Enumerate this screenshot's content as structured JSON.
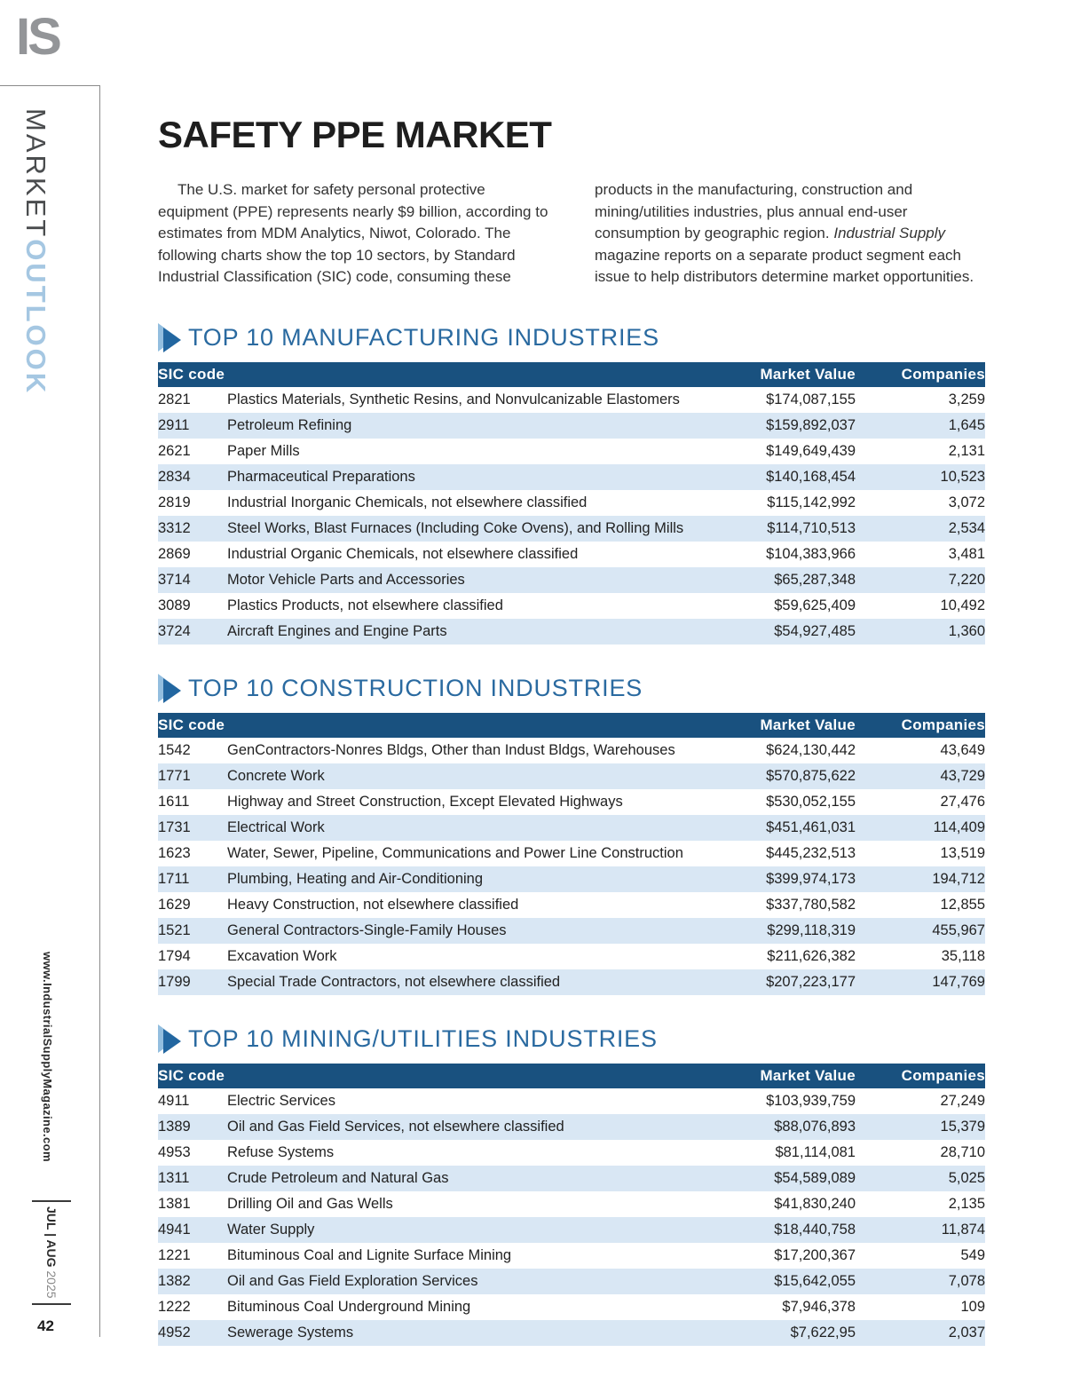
{
  "sidebar": {
    "logo": "IS",
    "title_dark": "MARKET",
    "title_light": "OUTLOOK",
    "website": "www.IndustrialSupplyMagazine.com",
    "issue": "JUL | AUG",
    "year": " 2025",
    "page_number": "42"
  },
  "header": {
    "title": "SAFETY PPE MARKET",
    "intro_col1": "The U.S. market for safety personal protective equipment (PPE) represents nearly $9 billion, according to estimates from MDM Analytics, Niwot, Colorado. The following charts show the top 10 sectors, by Standard Industrial Classification (SIC) code, consuming these",
    "intro_col2_pre": "products in the manufacturing, construction and mining/utilities industries, plus annual end-user consumption by geographic region. ",
    "intro_col2_italic": "Industrial Supply",
    "intro_col2_post": " magazine reports on a separate product segment each issue to help distributors determine market opportunities."
  },
  "table_headers": {
    "sic": "SIC code",
    "value": "Market Value",
    "companies": "Companies"
  },
  "tables": [
    {
      "title": "TOP 10 MANUFACTURING INDUSTRIES",
      "rows": [
        {
          "sic": "2821",
          "desc": "Plastics Materials, Synthetic Resins, and Nonvulcanizable Elastomers",
          "value": "$174,087,155",
          "companies": "3,259"
        },
        {
          "sic": "2911",
          "desc": "Petroleum Refining",
          "value": "$159,892,037",
          "companies": "1,645"
        },
        {
          "sic": "2621",
          "desc": "Paper Mills",
          "value": "$149,649,439",
          "companies": "2,131"
        },
        {
          "sic": "2834",
          "desc": "Pharmaceutical Preparations",
          "value": "$140,168,454",
          "companies": "10,523"
        },
        {
          "sic": "2819",
          "desc": "Industrial Inorganic Chemicals, not elsewhere classified",
          "value": "$115,142,992",
          "companies": "3,072"
        },
        {
          "sic": "3312",
          "desc": "Steel Works, Blast Furnaces (Including Coke Ovens), and Rolling Mills",
          "value": "$114,710,513",
          "companies": "2,534"
        },
        {
          "sic": "2869",
          "desc": "Industrial Organic Chemicals, not elsewhere classified",
          "value": "$104,383,966",
          "companies": "3,481"
        },
        {
          "sic": "3714",
          "desc": "Motor Vehicle Parts and Accessories",
          "value": "$65,287,348",
          "companies": "7,220"
        },
        {
          "sic": "3089",
          "desc": "Plastics Products, not elsewhere classified",
          "value": "$59,625,409",
          "companies": "10,492"
        },
        {
          "sic": "3724",
          "desc": "Aircraft Engines and Engine Parts",
          "value": "$54,927,485",
          "companies": "1,360"
        }
      ]
    },
    {
      "title": "TOP 10 CONSTRUCTION INDUSTRIES",
      "rows": [
        {
          "sic": "1542",
          "desc": "GenContractors-Nonres Bldgs, Other than Indust Bldgs, Warehouses",
          "value": "$624,130,442",
          "companies": "43,649"
        },
        {
          "sic": "1771",
          "desc": "Concrete Work",
          "value": "$570,875,622",
          "companies": "43,729"
        },
        {
          "sic": "1611",
          "desc": "Highway and Street Construction, Except Elevated Highways",
          "value": "$530,052,155",
          "companies": "27,476"
        },
        {
          "sic": "1731",
          "desc": "Electrical Work",
          "value": "$451,461,031",
          "companies": "114,409"
        },
        {
          "sic": "1623",
          "desc": "Water, Sewer, Pipeline, Communications and Power Line Construction",
          "value": "$445,232,513",
          "companies": "13,519"
        },
        {
          "sic": "1711",
          "desc": "Plumbing, Heating and Air-Conditioning",
          "value": "$399,974,173",
          "companies": "194,712"
        },
        {
          "sic": "1629",
          "desc": "Heavy Construction, not elsewhere classified",
          "value": "$337,780,582",
          "companies": "12,855"
        },
        {
          "sic": "1521",
          "desc": "General Contractors-Single-Family Houses",
          "value": "$299,118,319",
          "companies": "455,967"
        },
        {
          "sic": "1794",
          "desc": "Excavation Work",
          "value": "$211,626,382",
          "companies": "35,118"
        },
        {
          "sic": "1799",
          "desc": "Special Trade Contractors, not elsewhere classified",
          "value": "$207,223,177",
          "companies": "147,769"
        }
      ]
    },
    {
      "title": "TOP 10 MINING/UTILITIES INDUSTRIES",
      "rows": [
        {
          "sic": "4911",
          "desc": "Electric Services",
          "value": "$103,939,759",
          "companies": "27,249"
        },
        {
          "sic": "1389",
          "desc": "Oil and Gas Field Services, not elsewhere classified",
          "value": "$88,076,893",
          "companies": "15,379"
        },
        {
          "sic": "4953",
          "desc": "Refuse Systems",
          "value": "$81,114,081",
          "companies": "28,710"
        },
        {
          "sic": "1311",
          "desc": "Crude Petroleum and Natural Gas",
          "value": "$54,589,089",
          "companies": "5,025"
        },
        {
          "sic": "1381",
          "desc": "Drilling Oil and Gas Wells",
          "value": "$41,830,240",
          "companies": "2,135"
        },
        {
          "sic": "4941",
          "desc": "Water Supply",
          "value": "$18,440,758",
          "companies": "11,874"
        },
        {
          "sic": "1221",
          "desc": "Bituminous Coal and Lignite Surface Mining",
          "value": "$17,200,367",
          "companies": "549"
        },
        {
          "sic": "1382",
          "desc": "Oil and Gas Field Exploration Services",
          "value": "$15,642,055",
          "companies": "7,078"
        },
        {
          "sic": "1222",
          "desc": "Bituminous Coal Underground Mining",
          "value": "$7,946,378",
          "companies": "109"
        },
        {
          "sic": "4952",
          "desc": "Sewerage Systems",
          "value": "$7,622,95",
          "companies": "2,037"
        }
      ]
    }
  ]
}
